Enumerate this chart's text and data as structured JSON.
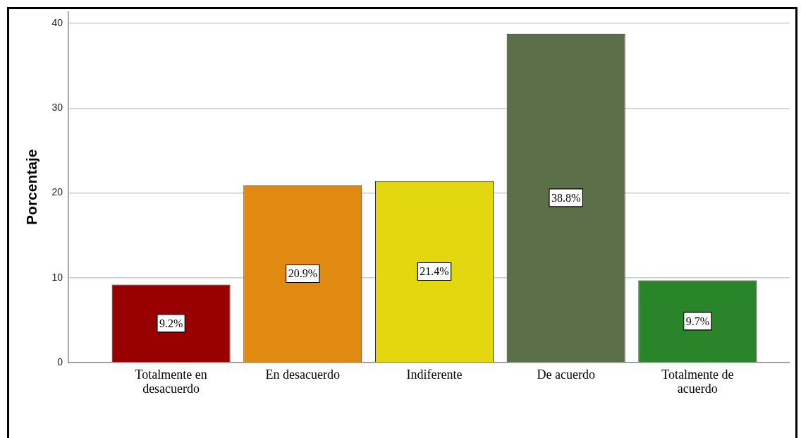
{
  "chart_data": {
    "type": "bar",
    "ylabel": "Porcentaje",
    "categories": [
      "Totalmente en desacuerdo",
      "En desacuerdo",
      "Indiferente",
      "De acuerdo",
      "Totalmente de acuerdo"
    ],
    "values": [
      9.2,
      20.9,
      21.4,
      38.8,
      9.7
    ],
    "colors": [
      "#990000",
      "#e08a12",
      "#e3d70f",
      "#5b7049",
      "#29842a"
    ],
    "value_labels": [
      "9.2%",
      "20.9%",
      "21.4%",
      "38.8%",
      "9.7%"
    ],
    "ylim": [
      0,
      41.4
    ],
    "yticks": [
      0,
      10,
      20,
      30,
      40
    ],
    "grid": "y"
  }
}
